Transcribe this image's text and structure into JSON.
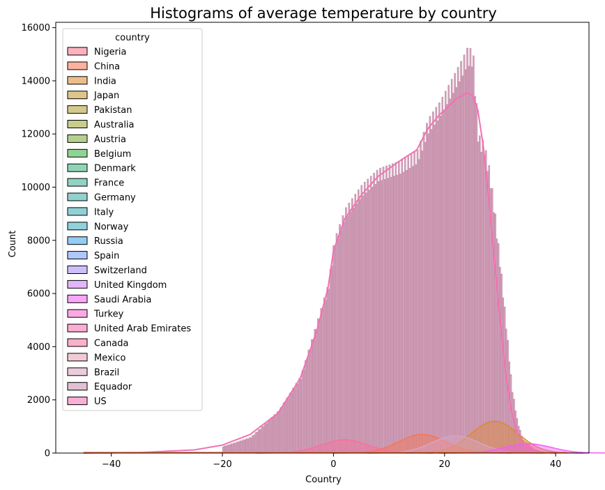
{
  "chart_data": {
    "type": "histogram",
    "title": "Histograms of average temperature by country",
    "xlabel": "Country",
    "ylabel": "Count",
    "xlim": [
      -50,
      46
    ],
    "ylim": [
      0,
      16200
    ],
    "xticks": [
      -40,
      -20,
      0,
      20,
      40
    ],
    "yticks": [
      0,
      2000,
      4000,
      6000,
      8000,
      10000,
      12000,
      14000,
      16000
    ],
    "grid": false,
    "kde": true,
    "multiple": "layer",
    "legend": {
      "title": "country",
      "placement": "upper-left",
      "entries": [
        "Nigeria",
        "China",
        "India",
        "Japan",
        "Pakistan",
        "Australia",
        "Austria",
        "Belgium",
        "Denmark",
        "France",
        "Germany",
        "Italy",
        "Norway",
        "Russia",
        "Spain",
        "Switzerland",
        "United Kingdom",
        "Saudi Arabia",
        "Turkey",
        "United Arab Emirates",
        "Canada",
        "Mexico",
        "Brazil",
        "Equador",
        "US"
      ],
      "colors": [
        "#f77189",
        "#f7754f",
        "#dc8932",
        "#c39532",
        "#ae9d31",
        "#97a431",
        "#77ab31",
        "#31b33e",
        "#33b07a",
        "#35ae93",
        "#36ada4",
        "#37abb4",
        "#38aabf",
        "#3ba3ec",
        "#6e9bf4",
        "#a48cf4",
        "#cc7af4",
        "#f45cf2",
        "#f565cc",
        "#f66bad",
        "#f7719a",
        "#e6a0b0",
        "#d9a3c0",
        "#c88db0",
        "#f470b2"
      ]
    },
    "dominant_series": {
      "name": "US",
      "kde": [
        [
          -45,
          0
        ],
        [
          -35,
          20
        ],
        [
          -25,
          120
        ],
        [
          -20,
          300
        ],
        [
          -15,
          700
        ],
        [
          -10,
          1500
        ],
        [
          -6,
          2800
        ],
        [
          -3,
          4600
        ],
        [
          -1,
          6200
        ],
        [
          0,
          7600
        ],
        [
          2,
          8800
        ],
        [
          5,
          9700
        ],
        [
          8,
          10400
        ],
        [
          12,
          11000
        ],
        [
          15,
          11400
        ],
        [
          17,
          12200
        ],
        [
          19,
          12700
        ],
        [
          22,
          13300
        ],
        [
          24,
          13550
        ],
        [
          25,
          13450
        ],
        [
          26,
          12900
        ],
        [
          27,
          11500
        ],
        [
          28,
          9500
        ],
        [
          29,
          7200
        ],
        [
          30,
          5000
        ],
        [
          31,
          3000
        ],
        [
          32,
          1600
        ],
        [
          33,
          800
        ],
        [
          34,
          400
        ],
        [
          36,
          100
        ],
        [
          38,
          20
        ],
        [
          40,
          0
        ]
      ],
      "bar_tops": [
        [
          -20,
          250
        ],
        [
          -15,
          600
        ],
        [
          -10,
          1600
        ],
        [
          -6,
          2900
        ],
        [
          -3,
          5000
        ],
        [
          -1,
          6400
        ],
        [
          0,
          8000
        ],
        [
          2,
          9200
        ],
        [
          5,
          10100
        ],
        [
          8,
          10700
        ],
        [
          12,
          11000
        ],
        [
          15,
          11400
        ],
        [
          17,
          12600
        ],
        [
          19,
          13200
        ],
        [
          21,
          14000
        ],
        [
          23,
          14800
        ],
        [
          24,
          15250
        ],
        [
          25,
          15200
        ],
        [
          26,
          12000
        ],
        [
          27,
          11700
        ],
        [
          28,
          10700
        ],
        [
          29,
          9000
        ],
        [
          30,
          7000
        ],
        [
          31,
          4800
        ],
        [
          32,
          2500
        ],
        [
          33,
          1200
        ],
        [
          34,
          500
        ],
        [
          36,
          150
        ],
        [
          38,
          30
        ]
      ]
    },
    "other_series_kde_peaks": [
      {
        "name": "India",
        "peak_x": 29,
        "peak_y": 1200
      },
      {
        "name": "China",
        "peak_x": 16,
        "peak_y": 700
      },
      {
        "name": "Brazil",
        "peak_x": 22,
        "peak_y": 650
      },
      {
        "name": "Saudi Arabia",
        "peak_x": 35,
        "peak_y": 350
      },
      {
        "name": "Canada",
        "peak_x": 2,
        "peak_y": 500
      }
    ]
  }
}
